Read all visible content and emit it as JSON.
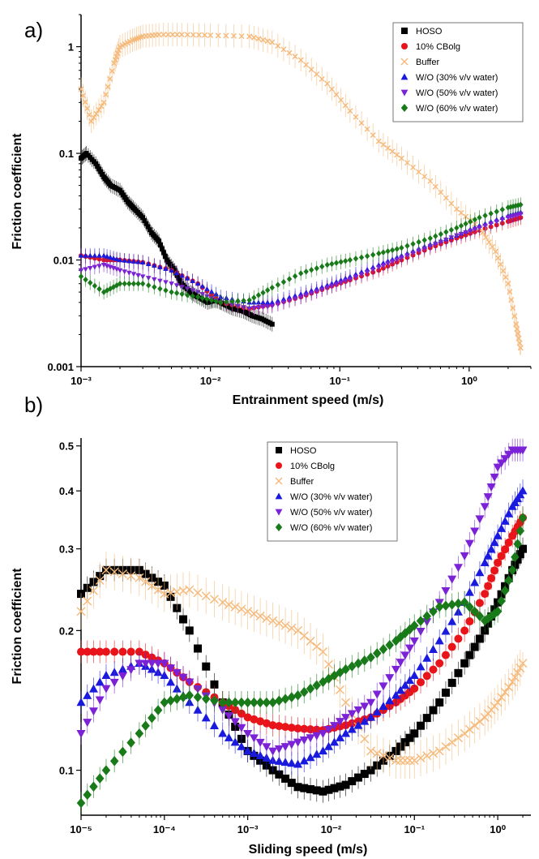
{
  "chart_data": [
    {
      "panel": "a)",
      "type": "scatter",
      "xlabel": "Entrainment speed (m/s)",
      "ylabel": "Friction coefficient",
      "xscale": "log",
      "yscale": "log",
      "xlim": [
        0.001,
        3
      ],
      "ylim": [
        0.001,
        2
      ],
      "yticks": [
        "0.001",
        "0.01",
        "0.1",
        "1"
      ],
      "legend_position": "top-right",
      "series": [
        {
          "name": "HOSO",
          "color": "#000000",
          "marker": "square",
          "x": [
            0.001,
            0.0011,
            0.0013,
            0.0015,
            0.0017,
            0.002,
            0.0023,
            0.0026,
            0.003,
            0.0035,
            0.004,
            0.0046,
            0.0053,
            0.006,
            0.007,
            0.008,
            0.0095,
            0.011,
            0.013,
            0.015,
            0.018,
            0.021,
            0.025,
            0.03
          ],
          "y": [
            0.09,
            0.1,
            0.08,
            0.06,
            0.05,
            0.045,
            0.035,
            0.03,
            0.025,
            0.018,
            0.015,
            0.01,
            0.008,
            0.006,
            0.005,
            0.0045,
            0.004,
            0.0042,
            0.0038,
            0.0035,
            0.0033,
            0.003,
            0.0028,
            0.0025
          ]
        },
        {
          "name": "10% CBolg",
          "color": "#e8141a",
          "marker": "circle",
          "x": [
            0.001,
            0.0015,
            0.002,
            0.003,
            0.005,
            0.008,
            0.012,
            0.02,
            0.03,
            0.05,
            0.08,
            0.12,
            0.2,
            0.3,
            0.5,
            0.8,
            1.2,
            2.0,
            2.5
          ],
          "y": [
            0.011,
            0.01,
            0.01,
            0.0095,
            0.008,
            0.006,
            0.004,
            0.0035,
            0.0038,
            0.0045,
            0.0055,
            0.0065,
            0.008,
            0.01,
            0.013,
            0.016,
            0.019,
            0.023,
            0.025
          ]
        },
        {
          "name": "Buffer",
          "color": "#f5b97a",
          "marker": "x",
          "x": [
            0.001,
            0.0012,
            0.0015,
            0.0018,
            0.002,
            0.0025,
            0.003,
            0.004,
            0.006,
            0.01,
            0.02,
            0.03,
            0.05,
            0.08,
            0.12,
            0.2,
            0.3,
            0.5,
            0.8,
            1.2,
            1.6,
            2.0,
            2.3,
            2.5
          ],
          "y": [
            0.4,
            0.2,
            0.3,
            0.7,
            1.0,
            1.15,
            1.25,
            1.3,
            1.3,
            1.28,
            1.25,
            1.1,
            0.75,
            0.45,
            0.25,
            0.13,
            0.09,
            0.055,
            0.03,
            0.02,
            0.012,
            0.006,
            0.0025,
            0.0015
          ]
        },
        {
          "name": "W/O (30% v/v water)",
          "color": "#1a1adf",
          "marker": "triangle-up",
          "x": [
            0.001,
            0.0015,
            0.002,
            0.003,
            0.005,
            0.008,
            0.012,
            0.02,
            0.03,
            0.05,
            0.08,
            0.12,
            0.2,
            0.3,
            0.5,
            0.8,
            1.2,
            2.0,
            2.5
          ],
          "y": [
            0.011,
            0.011,
            0.01,
            0.0095,
            0.008,
            0.006,
            0.0045,
            0.004,
            0.004,
            0.0048,
            0.0058,
            0.007,
            0.009,
            0.011,
            0.014,
            0.017,
            0.021,
            0.026,
            0.028
          ]
        },
        {
          "name": "W/O (50% v/v water)",
          "color": "#7b22d6",
          "marker": "triangle-down",
          "x": [
            0.001,
            0.0015,
            0.002,
            0.003,
            0.005,
            0.008,
            0.012,
            0.02,
            0.03,
            0.05,
            0.08,
            0.12,
            0.2,
            0.3,
            0.5,
            0.8,
            1.2,
            2.0,
            2.5
          ],
          "y": [
            0.008,
            0.009,
            0.008,
            0.007,
            0.006,
            0.005,
            0.004,
            0.0035,
            0.0037,
            0.0045,
            0.0055,
            0.0066,
            0.0085,
            0.0105,
            0.0135,
            0.017,
            0.02,
            0.025,
            0.027
          ]
        },
        {
          "name": "W/O (60% v/v water)",
          "color": "#187a18",
          "marker": "diamond",
          "x": [
            0.001,
            0.0015,
            0.002,
            0.003,
            0.005,
            0.008,
            0.012,
            0.02,
            0.03,
            0.05,
            0.08,
            0.12,
            0.2,
            0.3,
            0.5,
            0.8,
            1.2,
            2.0,
            2.5
          ],
          "y": [
            0.007,
            0.005,
            0.006,
            0.006,
            0.005,
            0.0045,
            0.004,
            0.0042,
            0.0055,
            0.0075,
            0.009,
            0.01,
            0.0115,
            0.013,
            0.016,
            0.02,
            0.025,
            0.031,
            0.033
          ]
        }
      ]
    },
    {
      "panel": "b)",
      "type": "scatter",
      "xlabel": "Sliding speed (m/s)",
      "ylabel": "Friction coefficient",
      "xscale": "log",
      "yscale": "log",
      "xlim": [
        1e-05,
        2.5
      ],
      "ylim": [
        0.08,
        0.52
      ],
      "yticks": [
        "0.1",
        "0.2",
        "0.3",
        "0.4",
        "0.5"
      ],
      "legend_position": "top-center",
      "series": [
        {
          "name": "HOSO",
          "color": "#000000",
          "marker": "square",
          "x": [
            1e-05,
            2e-05,
            5e-05,
            0.0001,
            0.0002,
            0.0005,
            0.001,
            0.002,
            0.004,
            0.008,
            0.015,
            0.03,
            0.06,
            0.1,
            0.2,
            0.4,
            0.7,
            1.0,
            1.5,
            2.0
          ],
          "y": [
            0.24,
            0.27,
            0.27,
            0.25,
            0.2,
            0.14,
            0.11,
            0.1,
            0.092,
            0.09,
            0.093,
            0.1,
            0.11,
            0.12,
            0.14,
            0.17,
            0.2,
            0.23,
            0.27,
            0.3
          ]
        },
        {
          "name": "10% CBolg",
          "color": "#e8141a",
          "marker": "circle",
          "x": [
            1e-05,
            2e-05,
            5e-05,
            0.0001,
            0.0002,
            0.0005,
            0.001,
            0.002,
            0.004,
            0.008,
            0.015,
            0.03,
            0.06,
            0.1,
            0.2,
            0.4,
            0.7,
            1.0,
            1.5,
            2.0
          ],
          "y": [
            0.18,
            0.18,
            0.18,
            0.17,
            0.155,
            0.14,
            0.13,
            0.125,
            0.123,
            0.122,
            0.125,
            0.13,
            0.14,
            0.15,
            0.17,
            0.2,
            0.24,
            0.28,
            0.32,
            0.35
          ]
        },
        {
          "name": "Buffer",
          "color": "#f5b97a",
          "marker": "x",
          "x": [
            1e-05,
            2e-05,
            5e-05,
            0.0001,
            0.0002,
            0.0005,
            0.001,
            0.002,
            0.004,
            0.008,
            0.015,
            0.03,
            0.06,
            0.1,
            0.2,
            0.4,
            0.7,
            1.0,
            1.5,
            2.0
          ],
          "y": [
            0.22,
            0.27,
            0.26,
            0.24,
            0.245,
            0.23,
            0.22,
            0.21,
            0.2,
            0.18,
            0.14,
            0.11,
            0.105,
            0.105,
            0.11,
            0.12,
            0.13,
            0.14,
            0.155,
            0.17
          ]
        },
        {
          "name": "W/O (30% v/v water)",
          "color": "#1a1adf",
          "marker": "triangle-up",
          "x": [
            1e-05,
            2e-05,
            5e-05,
            0.0001,
            0.0002,
            0.0005,
            0.001,
            0.002,
            0.004,
            0.008,
            0.015,
            0.03,
            0.06,
            0.1,
            0.2,
            0.4,
            0.7,
            1.0,
            1.5,
            2.0
          ],
          "y": [
            0.14,
            0.16,
            0.17,
            0.16,
            0.14,
            0.12,
            0.11,
            0.105,
            0.103,
            0.11,
            0.12,
            0.13,
            0.145,
            0.16,
            0.19,
            0.23,
            0.28,
            0.32,
            0.37,
            0.4
          ]
        },
        {
          "name": "W/O (50% v/v water)",
          "color": "#7b22d6",
          "marker": "triangle-down",
          "x": [
            1e-05,
            2e-05,
            5e-05,
            0.0001,
            0.0002,
            0.0005,
            0.001,
            0.002,
            0.004,
            0.008,
            0.015,
            0.03,
            0.06,
            0.1,
            0.2,
            0.4,
            0.7,
            1.0,
            1.5,
            2.0
          ],
          "y": [
            0.12,
            0.15,
            0.17,
            0.17,
            0.155,
            0.135,
            0.12,
            0.11,
            0.115,
            0.12,
            0.13,
            0.14,
            0.165,
            0.19,
            0.23,
            0.29,
            0.37,
            0.45,
            0.49,
            0.49
          ]
        },
        {
          "name": "W/O (60% v/v water)",
          "color": "#187a18",
          "marker": "diamond",
          "x": [
            1e-05,
            2e-05,
            5e-05,
            0.0001,
            0.0002,
            0.0005,
            0.001,
            0.002,
            0.004,
            0.008,
            0.015,
            0.03,
            0.06,
            0.1,
            0.2,
            0.4,
            0.7,
            1.0,
            1.5,
            2.0
          ],
          "y": [
            0.085,
            0.1,
            0.12,
            0.14,
            0.145,
            0.14,
            0.14,
            0.14,
            0.145,
            0.155,
            0.165,
            0.175,
            0.19,
            0.205,
            0.225,
            0.23,
            0.21,
            0.22,
            0.27,
            0.35
          ]
        }
      ]
    }
  ]
}
